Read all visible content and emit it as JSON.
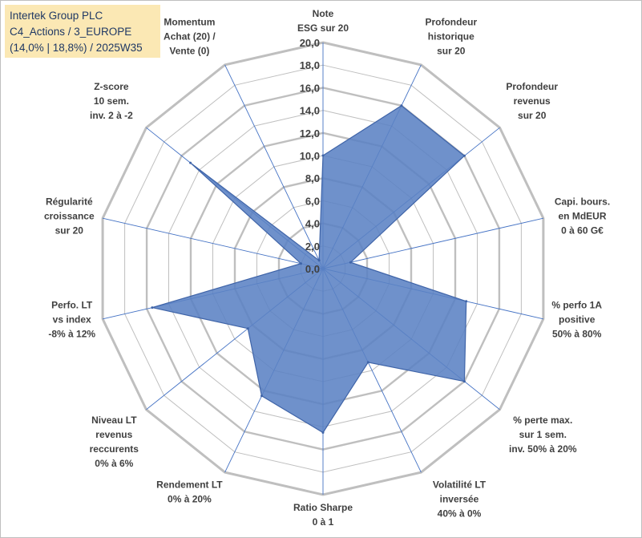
{
  "title_box": {
    "line1": "Intertek Group PLC",
    "line2": "C4_Actions / 3_EUROPE",
    "line3": "(14,0% | 18,8%) / 2025W35"
  },
  "chart_data": {
    "type": "radar",
    "range": [
      0,
      20
    ],
    "tick_step": 2,
    "tick_labels": [
      "0,0",
      "2,0",
      "4,0",
      "6,0",
      "8,0",
      "10,0",
      "12,0",
      "14,0",
      "16,0",
      "18,0",
      "20,0"
    ],
    "axes": [
      {
        "label": [
          "Note",
          "ESG sur 20"
        ],
        "value": 10.0
      },
      {
        "label": [
          "Profondeur",
          "historique",
          "sur 20"
        ],
        "value": 16.0
      },
      {
        "label": [
          "Profondeur",
          "revenus",
          "sur 20"
        ],
        "value": 16.0
      },
      {
        "label": [
          "Capi. bours.",
          "en MdEUR",
          "0 à 60 G€"
        ],
        "value": 2.5
      },
      {
        "label": [
          "% perfo 1A",
          "positive",
          "50% à 80%"
        ],
        "value": 13.0
      },
      {
        "label": [
          "% perte max.",
          "sur 1 sem.",
          "inv. 50% à 20%"
        ],
        "value": 16.0
      },
      {
        "label": [
          "Volatilité LT",
          "inversée",
          "40% à 0%"
        ],
        "value": 9.2
      },
      {
        "label": [
          "Ratio Sharpe",
          "0 à 1"
        ],
        "value": 14.5
      },
      {
        "label": [
          "Rendement LT",
          "0% à 20%"
        ],
        "value": 12.5
      },
      {
        "label": [
          "Niveau LT",
          "revenus",
          "reccurents",
          "0% à 6%"
        ],
        "value": 8.5
      },
      {
        "label": [
          "Perfo. LT",
          "vs index",
          "-8% à 12%"
        ],
        "value": 15.5
      },
      {
        "label": [
          "Régularité",
          "croissance",
          "sur 20"
        ],
        "value": 2.0
      },
      {
        "label": [
          "Z-score",
          "10 sem.",
          "inv. 2 à -2"
        ],
        "value": 15.0
      },
      {
        "label": [
          "Momentum",
          "Achat (20) /",
          "Vente (0)"
        ],
        "value": 0.8
      }
    ],
    "colors": {
      "fill": "#5b82c4",
      "stroke": "#3f64a8",
      "grid": "#bfbfbf",
      "spoke": "#4472c4"
    },
    "grid": true,
    "legend": "none"
  }
}
